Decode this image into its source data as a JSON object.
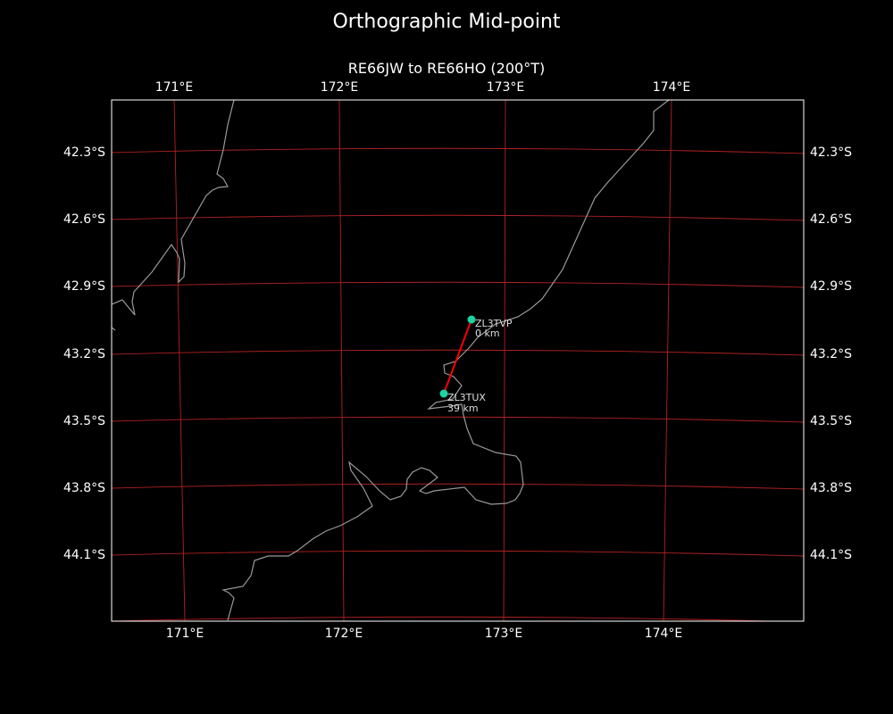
{
  "title": "Orthographic Mid-point",
  "subtitle": "RE66JW to RE66HO (200°T)",
  "lon_labels": [
    "171°E",
    "172°E",
    "173°E",
    "174°E"
  ],
  "lat_labels": [
    "42.3°S",
    "42.6°S",
    "42.9°S",
    "43.2°S",
    "43.5°S",
    "43.8°S",
    "44.1°S"
  ],
  "stations": [
    {
      "call": "ZL3TVP",
      "distance": "0 km"
    },
    {
      "call": "ZL3TUX",
      "distance": "39 km"
    }
  ],
  "colors": {
    "background": "#000000",
    "grid": "#b22222",
    "coast": "#999999",
    "path": "#ff0000",
    "station": "#1dd3a0",
    "frame": "#ffffff"
  }
}
